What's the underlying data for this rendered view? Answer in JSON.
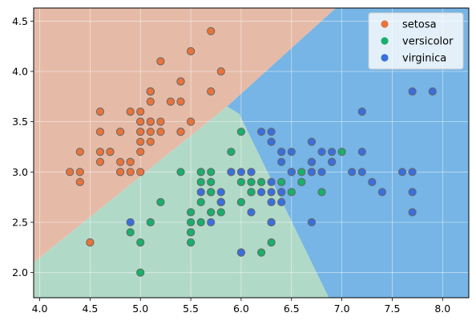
{
  "chart_data": {
    "type": "scatter",
    "xlim": [
      3.94,
      8.26
    ],
    "ylim": [
      1.75,
      4.63
    ],
    "x_ticks": [
      4.0,
      4.5,
      5.0,
      5.5,
      6.0,
      6.5,
      7.0,
      7.5,
      8.0
    ],
    "x_tick_labels": [
      "4.0",
      "4.5",
      "5.0",
      "5.5",
      "6.0",
      "6.5",
      "7.0",
      "7.5",
      "8.0"
    ],
    "y_ticks": [
      2.0,
      2.5,
      3.0,
      3.5,
      4.0,
      4.5
    ],
    "y_tick_labels": [
      "2.0",
      "2.5",
      "3.0",
      "3.5",
      "4.0",
      "4.5"
    ],
    "grid": true,
    "legend_position": "top-right",
    "decision_regions": [
      {
        "class": "setosa",
        "color": "#e5bba8",
        "polygon": [
          [
            3.94,
            4.63
          ],
          [
            6.94,
            4.63
          ],
          [
            5.86,
            3.65
          ],
          [
            3.94,
            2.1
          ]
        ]
      },
      {
        "class": "versicolor",
        "color": "#b1d9c8",
        "polygon": [
          [
            3.94,
            2.1
          ],
          [
            5.86,
            3.65
          ],
          [
            5.98,
            3.58
          ],
          [
            6.87,
            1.75
          ],
          [
            3.94,
            1.75
          ]
        ]
      },
      {
        "class": "virginica",
        "color": "#76b5e6",
        "polygon": [
          [
            6.94,
            4.63
          ],
          [
            8.26,
            4.63
          ],
          [
            8.26,
            1.75
          ],
          [
            6.87,
            1.75
          ],
          [
            5.98,
            3.58
          ],
          [
            5.86,
            3.65
          ]
        ]
      }
    ],
    "series": [
      {
        "name": "setosa",
        "color": "#e8743b",
        "points": [
          [
            5.1,
            3.5
          ],
          [
            4.9,
            3.0
          ],
          [
            4.7,
            3.2
          ],
          [
            4.6,
            3.1
          ],
          [
            5.0,
            3.6
          ],
          [
            5.4,
            3.9
          ],
          [
            4.6,
            3.4
          ],
          [
            5.0,
            3.4
          ],
          [
            4.4,
            2.9
          ],
          [
            4.9,
            3.1
          ],
          [
            5.4,
            3.7
          ],
          [
            4.8,
            3.4
          ],
          [
            4.8,
            3.0
          ],
          [
            4.3,
            3.0
          ],
          [
            5.8,
            4.0
          ],
          [
            5.7,
            4.4
          ],
          [
            5.4,
            3.9
          ],
          [
            5.1,
            3.5
          ],
          [
            5.7,
            3.8
          ],
          [
            5.1,
            3.8
          ],
          [
            5.4,
            3.4
          ],
          [
            5.1,
            3.7
          ],
          [
            4.6,
            3.6
          ],
          [
            5.1,
            3.3
          ],
          [
            4.8,
            3.4
          ],
          [
            5.0,
            3.0
          ],
          [
            5.0,
            3.4
          ],
          [
            5.2,
            3.5
          ],
          [
            5.2,
            3.4
          ],
          [
            4.7,
            3.2
          ],
          [
            4.8,
            3.1
          ],
          [
            5.4,
            3.4
          ],
          [
            5.2,
            4.1
          ],
          [
            5.5,
            4.2
          ],
          [
            4.9,
            3.1
          ],
          [
            5.0,
            3.2
          ],
          [
            5.5,
            3.5
          ],
          [
            4.9,
            3.6
          ],
          [
            4.4,
            3.0
          ],
          [
            5.1,
            3.4
          ],
          [
            5.0,
            3.5
          ],
          [
            4.5,
            2.3
          ],
          [
            4.4,
            3.2
          ],
          [
            5.0,
            3.5
          ],
          [
            5.1,
            3.8
          ],
          [
            4.8,
            3.0
          ],
          [
            5.1,
            3.8
          ],
          [
            4.6,
            3.2
          ],
          [
            5.3,
            3.7
          ],
          [
            5.0,
            3.3
          ]
        ]
      },
      {
        "name": "versicolor",
        "color": "#1aaf6c",
        "points": [
          [
            7.0,
            3.2
          ],
          [
            6.4,
            3.2
          ],
          [
            6.9,
            3.1
          ],
          [
            5.5,
            2.3
          ],
          [
            6.5,
            2.8
          ],
          [
            5.7,
            2.8
          ],
          [
            6.3,
            3.3
          ],
          [
            4.9,
            2.4
          ],
          [
            6.6,
            2.9
          ],
          [
            5.2,
            2.7
          ],
          [
            5.0,
            2.0
          ],
          [
            5.9,
            3.0
          ],
          [
            6.0,
            2.2
          ],
          [
            6.1,
            2.9
          ],
          [
            5.6,
            2.9
          ],
          [
            6.7,
            3.1
          ],
          [
            5.6,
            3.0
          ],
          [
            5.8,
            2.7
          ],
          [
            6.2,
            2.2
          ],
          [
            5.6,
            2.5
          ],
          [
            5.9,
            3.2
          ],
          [
            6.1,
            2.8
          ],
          [
            6.3,
            2.5
          ],
          [
            6.1,
            2.8
          ],
          [
            6.4,
            2.9
          ],
          [
            6.6,
            3.0
          ],
          [
            6.8,
            2.8
          ],
          [
            6.7,
            3.0
          ],
          [
            6.0,
            2.9
          ],
          [
            5.7,
            2.6
          ],
          [
            5.5,
            2.4
          ],
          [
            5.5,
            2.4
          ],
          [
            5.8,
            2.7
          ],
          [
            6.0,
            2.7
          ],
          [
            5.4,
            3.0
          ],
          [
            6.0,
            3.4
          ],
          [
            6.7,
            3.1
          ],
          [
            6.3,
            2.3
          ],
          [
            5.6,
            3.0
          ],
          [
            5.5,
            2.5
          ],
          [
            5.5,
            2.6
          ],
          [
            6.1,
            3.0
          ],
          [
            5.8,
            2.6
          ],
          [
            5.0,
            2.3
          ],
          [
            5.6,
            2.7
          ],
          [
            5.7,
            3.0
          ],
          [
            5.7,
            2.9
          ],
          [
            6.2,
            2.9
          ],
          [
            5.1,
            2.5
          ],
          [
            5.7,
            2.8
          ]
        ]
      },
      {
        "name": "virginica",
        "color": "#3a6fdc",
        "points": [
          [
            6.3,
            3.3
          ],
          [
            5.8,
            2.7
          ],
          [
            7.1,
            3.0
          ],
          [
            6.3,
            2.9
          ],
          [
            6.5,
            3.0
          ],
          [
            7.6,
            3.0
          ],
          [
            4.9,
            2.5
          ],
          [
            7.3,
            2.9
          ],
          [
            6.7,
            2.5
          ],
          [
            7.2,
            3.6
          ],
          [
            6.5,
            3.2
          ],
          [
            6.4,
            2.7
          ],
          [
            6.8,
            3.0
          ],
          [
            5.7,
            2.5
          ],
          [
            5.8,
            2.8
          ],
          [
            6.4,
            3.2
          ],
          [
            6.5,
            3.0
          ],
          [
            7.7,
            3.8
          ],
          [
            7.7,
            2.6
          ],
          [
            6.0,
            2.2
          ],
          [
            6.9,
            3.2
          ],
          [
            5.6,
            2.8
          ],
          [
            7.7,
            2.8
          ],
          [
            6.3,
            2.7
          ],
          [
            6.7,
            3.3
          ],
          [
            7.2,
            3.2
          ],
          [
            6.2,
            2.8
          ],
          [
            6.1,
            3.0
          ],
          [
            6.4,
            2.8
          ],
          [
            7.2,
            3.0
          ],
          [
            7.4,
            2.8
          ],
          [
            7.9,
            3.8
          ],
          [
            6.4,
            2.8
          ],
          [
            6.3,
            2.8
          ],
          [
            6.1,
            2.6
          ],
          [
            7.7,
            3.0
          ],
          [
            6.3,
            3.4
          ],
          [
            6.4,
            3.1
          ],
          [
            6.0,
            3.0
          ],
          [
            6.9,
            3.1
          ],
          [
            6.7,
            3.1
          ],
          [
            6.9,
            3.1
          ],
          [
            5.8,
            2.7
          ],
          [
            6.8,
            3.2
          ],
          [
            6.7,
            3.3
          ],
          [
            6.7,
            3.0
          ],
          [
            6.3,
            2.5
          ],
          [
            6.5,
            3.0
          ],
          [
            6.2,
            3.4
          ],
          [
            5.9,
            3.0
          ]
        ]
      }
    ],
    "legend": [
      "setosa",
      "versicolor",
      "virginica"
    ]
  }
}
